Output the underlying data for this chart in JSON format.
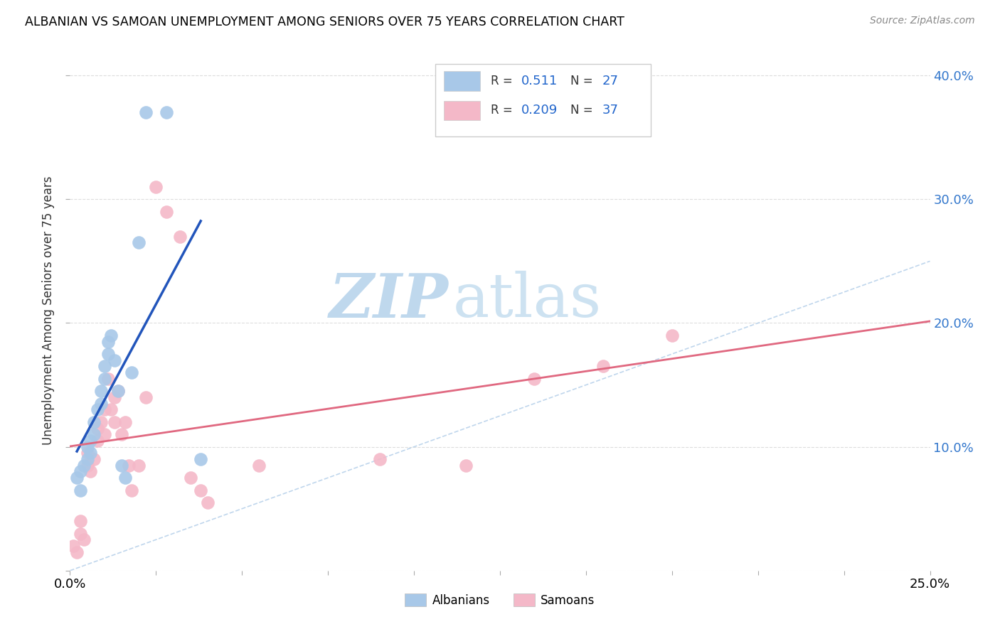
{
  "title": "ALBANIAN VS SAMOAN UNEMPLOYMENT AMONG SENIORS OVER 75 YEARS CORRELATION CHART",
  "source": "Source: ZipAtlas.com",
  "ylabel": "Unemployment Among Seniors over 75 years",
  "xlim": [
    0.0,
    0.25
  ],
  "ylim": [
    -0.02,
    0.42
  ],
  "plot_ylim": [
    0.0,
    0.42
  ],
  "xticks": [
    0.0,
    0.025,
    0.05,
    0.075,
    0.1,
    0.125,
    0.15,
    0.175,
    0.2,
    0.225,
    0.25
  ],
  "yticks": [
    0.0,
    0.1,
    0.2,
    0.3,
    0.4
  ],
  "albanian_R": "0.511",
  "albanian_N": "27",
  "samoan_R": "0.209",
  "samoan_N": "37",
  "albanian_color": "#a8c8e8",
  "samoan_color": "#f4b8c8",
  "albanian_line_color": "#2255bb",
  "samoan_line_color": "#e06880",
  "diagonal_color": "#b0cce8",
  "albanian_x": [
    0.002,
    0.003,
    0.003,
    0.004,
    0.005,
    0.005,
    0.006,
    0.006,
    0.007,
    0.007,
    0.008,
    0.009,
    0.009,
    0.01,
    0.01,
    0.011,
    0.011,
    0.012,
    0.013,
    0.014,
    0.015,
    0.016,
    0.018,
    0.02,
    0.022,
    0.028,
    0.038
  ],
  "albanian_y": [
    0.075,
    0.065,
    0.08,
    0.085,
    0.09,
    0.1,
    0.095,
    0.105,
    0.11,
    0.12,
    0.13,
    0.135,
    0.145,
    0.155,
    0.165,
    0.175,
    0.185,
    0.19,
    0.17,
    0.145,
    0.085,
    0.075,
    0.16,
    0.265,
    0.37,
    0.37,
    0.09
  ],
  "samoan_x": [
    0.001,
    0.002,
    0.003,
    0.003,
    0.004,
    0.005,
    0.005,
    0.006,
    0.007,
    0.008,
    0.008,
    0.009,
    0.01,
    0.01,
    0.011,
    0.012,
    0.013,
    0.013,
    0.014,
    0.015,
    0.016,
    0.017,
    0.018,
    0.02,
    0.022,
    0.025,
    0.028,
    0.032,
    0.035,
    0.038,
    0.04,
    0.055,
    0.09,
    0.115,
    0.135,
    0.155,
    0.175
  ],
  "samoan_y": [
    0.02,
    0.015,
    0.03,
    0.04,
    0.025,
    0.085,
    0.095,
    0.08,
    0.09,
    0.115,
    0.105,
    0.12,
    0.13,
    0.11,
    0.155,
    0.13,
    0.14,
    0.12,
    0.145,
    0.11,
    0.12,
    0.085,
    0.065,
    0.085,
    0.14,
    0.31,
    0.29,
    0.27,
    0.075,
    0.065,
    0.055,
    0.085,
    0.09,
    0.085,
    0.155,
    0.165,
    0.19
  ],
  "watermark_zip": "ZIP",
  "watermark_atlas": "atlas",
  "watermark_color": "#c8dff0",
  "background_color": "#ffffff",
  "grid_color": "#dddddd"
}
